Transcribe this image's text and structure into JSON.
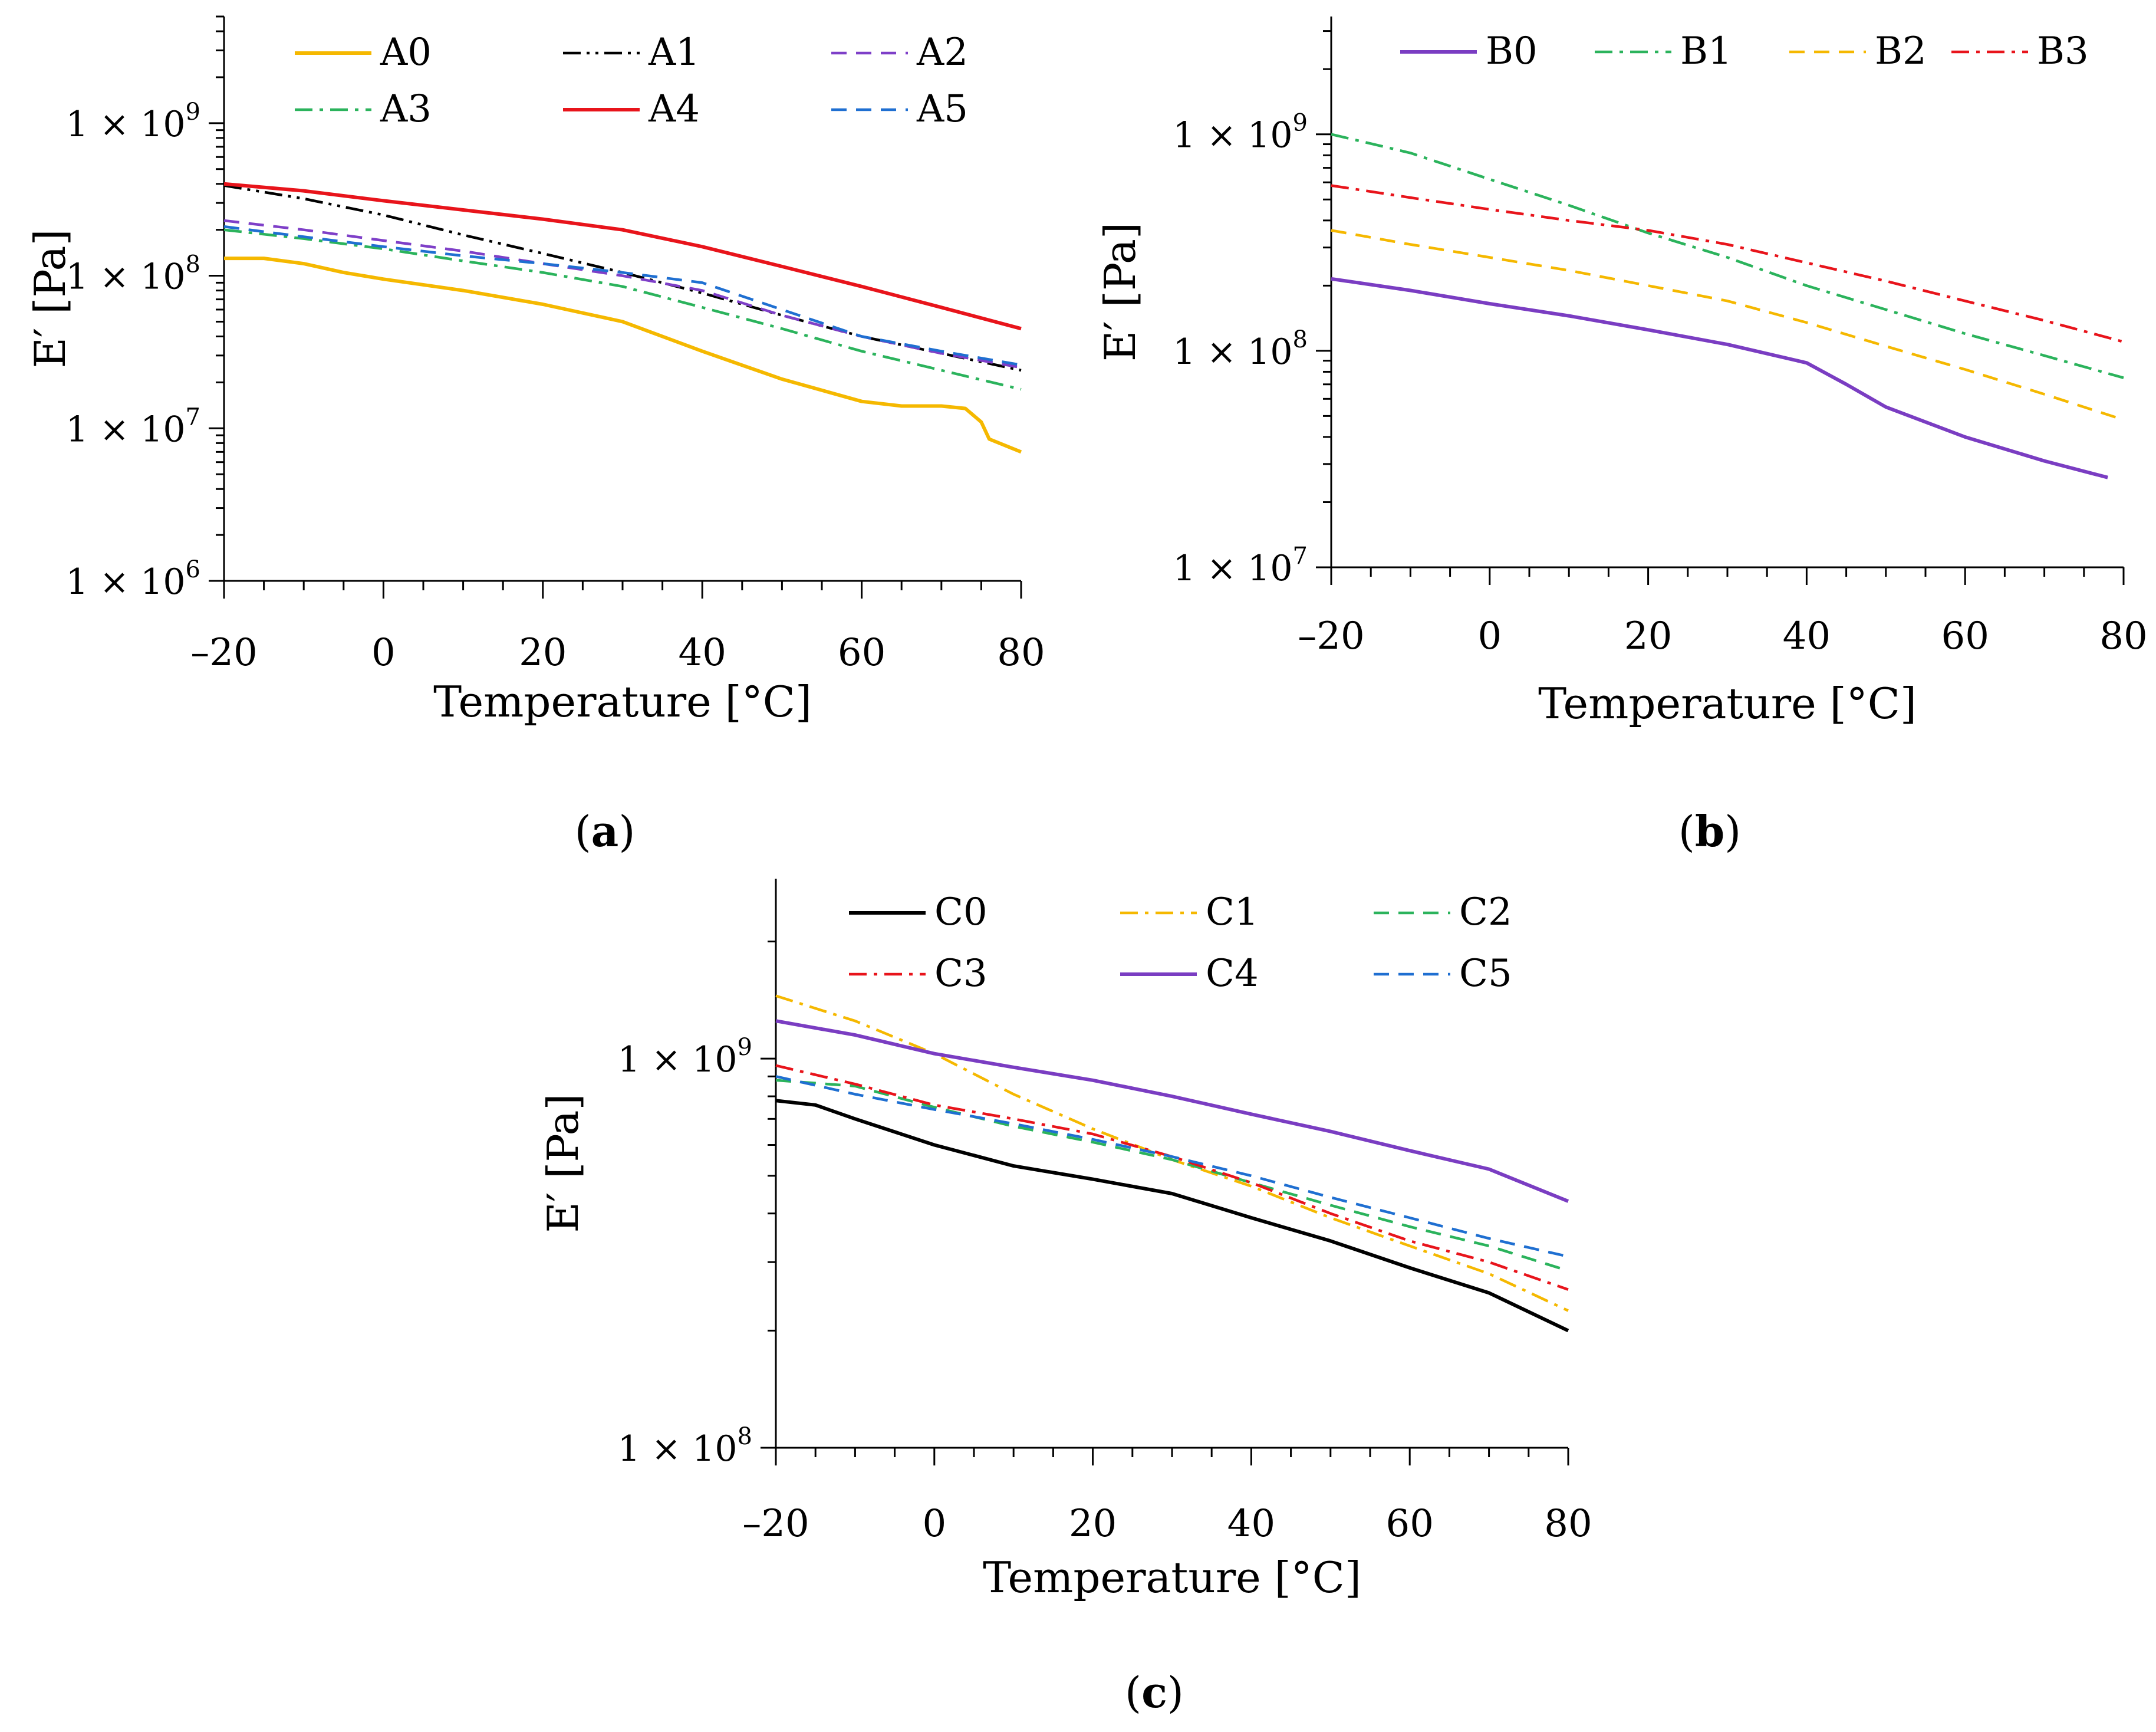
{
  "figure": {
    "panel_labels": {
      "a": "a",
      "b": "b",
      "c": "c"
    }
  },
  "colors": {
    "A0": "#F5B800",
    "A1": "#000000",
    "A2": "#7E3FC8",
    "A3": "#2BB35C",
    "A4": "#E8141B",
    "A5": "#1F6FD1",
    "B0": "#7A3DC2",
    "B1": "#2BB35C",
    "B2": "#F5B800",
    "B3": "#E8141B",
    "C0": "#000000",
    "C1": "#F5B800",
    "C2": "#2BB35C",
    "C3": "#E8141B",
    "C4": "#7A3DC2",
    "C5": "#1F6FD1"
  },
  "chart_data": [
    {
      "id": "a",
      "type": "line",
      "yscale": "log",
      "xlabel": "Temperature [°C]",
      "ylabel": "E′ [Pa]",
      "xlim": [
        -20,
        80
      ],
      "ylim": [
        1000000,
        5000000000
      ],
      "xticks": [
        -20,
        0,
        20,
        40,
        60,
        80
      ],
      "xtick_labels": [
        "–20",
        "0",
        "20",
        "40",
        "60",
        "80"
      ],
      "yticks": [
        1000000,
        10000000,
        100000000,
        1000000000
      ],
      "ytick_labels": [
        [
          "1 × 10",
          "6"
        ],
        [
          "1 × 10",
          "7"
        ],
        [
          "1 × 10",
          "8"
        ],
        [
          "1 × 10",
          "9"
        ]
      ],
      "legend_position": "top",
      "series": [
        {
          "name": "A0",
          "style": "solid",
          "x": [
            -20,
            -15,
            -10,
            -5,
            0,
            10,
            20,
            30,
            40,
            50,
            60,
            65,
            70,
            73,
            75,
            76,
            80
          ],
          "values": [
            130000000,
            130000000,
            120000000,
            105000000,
            95000000,
            80000000,
            65000000,
            50000000,
            32000000,
            21000000,
            15000000,
            14000000,
            14000000,
            13500000,
            11000000,
            8500000,
            7000000
          ]
        },
        {
          "name": "A1",
          "style": "dashdotdot",
          "x": [
            -20,
            -10,
            0,
            10,
            20,
            30,
            40,
            50,
            60,
            70,
            80
          ],
          "values": [
            390000000,
            320000000,
            250000000,
            185000000,
            140000000,
            105000000,
            77000000,
            55000000,
            40000000,
            31000000,
            24000000
          ]
        },
        {
          "name": "A2",
          "style": "dashed",
          "x": [
            -20,
            -10,
            0,
            10,
            20,
            30,
            40,
            50,
            60,
            70,
            80
          ],
          "values": [
            230000000,
            200000000,
            170000000,
            145000000,
            120000000,
            100000000,
            80000000,
            55000000,
            40000000,
            31000000,
            25000000
          ]
        },
        {
          "name": "A3",
          "style": "dashdot",
          "x": [
            -20,
            -10,
            0,
            10,
            20,
            30,
            40,
            50,
            60,
            70,
            80
          ],
          "values": [
            200000000,
            175000000,
            150000000,
            125000000,
            105000000,
            85000000,
            62000000,
            45000000,
            32000000,
            24000000,
            18000000
          ]
        },
        {
          "name": "A4",
          "style": "solid",
          "x": [
            -20,
            -10,
            0,
            10,
            20,
            30,
            40,
            50,
            60,
            70,
            80
          ],
          "values": [
            400000000,
            360000000,
            310000000,
            270000000,
            235000000,
            200000000,
            155000000,
            115000000,
            85000000,
            62000000,
            45000000
          ]
        },
        {
          "name": "A5",
          "style": "dashed",
          "x": [
            -20,
            -10,
            0,
            10,
            20,
            30,
            40,
            50,
            60,
            70,
            80
          ],
          "values": [
            210000000,
            180000000,
            155000000,
            135000000,
            120000000,
            105000000,
            90000000,
            60000000,
            40000000,
            32000000,
            26000000
          ]
        }
      ]
    },
    {
      "id": "b",
      "type": "line",
      "yscale": "log",
      "xlabel": "Temperature [°C]",
      "ylabel": "E′ [Pa]",
      "xlim": [
        -20,
        80
      ],
      "ylim": [
        10000000,
        3500000000
      ],
      "xticks": [
        -20,
        0,
        20,
        40,
        60,
        80
      ],
      "xtick_labels": [
        "–20",
        "0",
        "20",
        "40",
        "60",
        "80"
      ],
      "yticks": [
        10000000,
        100000000,
        1000000000
      ],
      "ytick_labels": [
        [
          "1 × 10",
          "7"
        ],
        [
          "1 × 10",
          "8"
        ],
        [
          "1 × 10",
          "9"
        ]
      ],
      "legend_position": "top",
      "series": [
        {
          "name": "B0",
          "style": "solid",
          "x": [
            -20,
            -10,
            0,
            10,
            20,
            30,
            40,
            45,
            50,
            60,
            70,
            78
          ],
          "values": [
            215000000,
            190000000,
            165000000,
            145000000,
            125000000,
            107000000,
            88000000,
            70000000,
            55000000,
            40000000,
            31000000,
            26000000
          ]
        },
        {
          "name": "B1",
          "style": "dashdot",
          "x": [
            -20,
            -10,
            0,
            10,
            20,
            30,
            40,
            50,
            60,
            70,
            80
          ],
          "values": [
            1000000000,
            820000000,
            620000000,
            470000000,
            350000000,
            270000000,
            200000000,
            155000000,
            120000000,
            95000000,
            75000000
          ]
        },
        {
          "name": "B2",
          "style": "dashed",
          "x": [
            -20,
            -10,
            0,
            10,
            20,
            30,
            40,
            50,
            60,
            70,
            80
          ],
          "values": [
            360000000,
            310000000,
            270000000,
            235000000,
            200000000,
            170000000,
            135000000,
            105000000,
            82000000,
            63000000,
            48000000
          ]
        },
        {
          "name": "B3",
          "style": "dashdot",
          "x": [
            -20,
            -10,
            0,
            10,
            20,
            30,
            40,
            50,
            60,
            70,
            80
          ],
          "values": [
            580000000,
            510000000,
            450000000,
            400000000,
            360000000,
            310000000,
            255000000,
            210000000,
            170000000,
            138000000,
            110000000
          ]
        }
      ]
    },
    {
      "id": "c",
      "type": "line",
      "yscale": "log",
      "xlabel": "Temperature [°C]",
      "ylabel": "E′ [Pa]",
      "xlim": [
        -20,
        80
      ],
      "ylim": [
        100000000,
        2900000000
      ],
      "xticks": [
        -20,
        0,
        20,
        40,
        60,
        80
      ],
      "xtick_labels": [
        "–20",
        "0",
        "20",
        "40",
        "60",
        "80"
      ],
      "yticks": [
        100000000,
        1000000000
      ],
      "ytick_labels": [
        [
          "1 × 10",
          "8"
        ],
        [
          "1 × 10",
          "9"
        ]
      ],
      "legend_position": "top",
      "series": [
        {
          "name": "C0",
          "style": "solid",
          "x": [
            -20,
            -15,
            -10,
            0,
            10,
            20,
            30,
            40,
            50,
            60,
            70,
            80
          ],
          "values": [
            780000000,
            760000000,
            700000000,
            600000000,
            530000000,
            490000000,
            450000000,
            390000000,
            340000000,
            290000000,
            250000000,
            200000000
          ]
        },
        {
          "name": "C1",
          "style": "dashdot",
          "x": [
            -20,
            -10,
            0,
            10,
            20,
            30,
            40,
            50,
            60,
            70,
            80
          ],
          "values": [
            1450000000,
            1250000000,
            1030000000,
            810000000,
            660000000,
            550000000,
            470000000,
            390000000,
            330000000,
            280000000,
            225000000
          ]
        },
        {
          "name": "C2",
          "style": "dashed",
          "x": [
            -20,
            -10,
            0,
            10,
            20,
            30,
            40,
            50,
            60,
            70,
            80
          ],
          "values": [
            880000000,
            850000000,
            750000000,
            670000000,
            610000000,
            550000000,
            480000000,
            420000000,
            370000000,
            330000000,
            285000000
          ]
        },
        {
          "name": "C3",
          "style": "dashdot",
          "x": [
            -20,
            -10,
            0,
            10,
            20,
            30,
            40,
            50,
            60,
            70,
            80
          ],
          "values": [
            960000000,
            860000000,
            760000000,
            700000000,
            640000000,
            560000000,
            480000000,
            400000000,
            340000000,
            300000000,
            255000000
          ]
        },
        {
          "name": "C4",
          "style": "solid",
          "x": [
            -20,
            -10,
            0,
            10,
            20,
            30,
            40,
            50,
            60,
            70,
            80
          ],
          "values": [
            1250000000,
            1150000000,
            1030000000,
            950000000,
            880000000,
            800000000,
            720000000,
            650000000,
            580000000,
            520000000,
            430000000
          ]
        },
        {
          "name": "C5",
          "style": "dashed",
          "x": [
            -20,
            -10,
            0,
            10,
            20,
            30,
            40,
            50,
            60,
            70,
            80
          ],
          "values": [
            900000000,
            810000000,
            740000000,
            680000000,
            620000000,
            560000000,
            500000000,
            440000000,
            390000000,
            345000000,
            310000000
          ]
        }
      ]
    }
  ]
}
